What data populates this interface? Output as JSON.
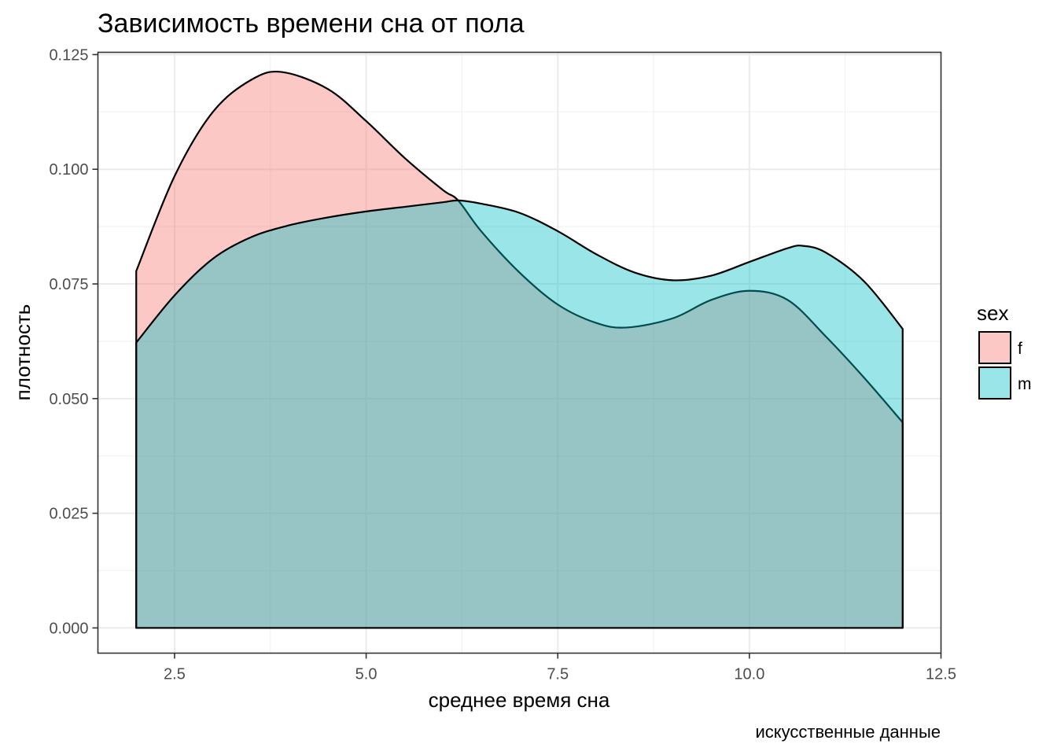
{
  "chart_data": {
    "type": "area",
    "title": "Зависимость времени сна от пола",
    "xlabel": "среднее время сна",
    "ylabel": "плотность",
    "caption": "искусственные данные",
    "xlim": [
      1.5,
      12.5
    ],
    "ylim": [
      -0.0055,
      0.1255
    ],
    "x_ticks": [
      2.5,
      5.0,
      7.5,
      10.0,
      12.5
    ],
    "x_tick_labels": [
      "2.5",
      "5.0",
      "7.5",
      "10.0",
      "12.5"
    ],
    "y_ticks": [
      0.0,
      0.025,
      0.05,
      0.075,
      0.1,
      0.125
    ],
    "y_tick_labels": [
      "0.000",
      "0.025",
      "0.050",
      "0.075",
      "0.100",
      "0.125"
    ],
    "grid": true,
    "legend": {
      "title": "sex",
      "placement": "right"
    },
    "series": [
      {
        "name": "f",
        "fill": "#F8766D",
        "x": [
          2.0,
          2.5,
          3.0,
          3.5,
          3.9,
          4.5,
          5.0,
          5.5,
          6.0,
          6.2,
          6.5,
          7.0,
          7.5,
          8.0,
          8.4,
          9.0,
          9.5,
          10.0,
          10.5,
          11.0,
          11.5,
          12.0
        ],
        "y": [
          0.0778,
          0.0985,
          0.1125,
          0.1195,
          0.1212,
          0.1175,
          0.1105,
          0.1025,
          0.0955,
          0.0932,
          0.0865,
          0.0775,
          0.0705,
          0.0665,
          0.0655,
          0.0675,
          0.0715,
          0.0735,
          0.0715,
          0.0635,
          0.0545,
          0.0448
        ]
      },
      {
        "name": "m",
        "fill": "#00BFC4",
        "x": [
          2.0,
          2.5,
          3.0,
          3.5,
          4.0,
          4.5,
          5.0,
          5.5,
          6.0,
          6.2,
          6.5,
          7.0,
          7.5,
          8.0,
          8.5,
          9.0,
          9.5,
          10.0,
          10.5,
          10.7,
          11.0,
          11.5,
          12.0
        ],
        "y": [
          0.0622,
          0.0725,
          0.0805,
          0.0852,
          0.0878,
          0.0895,
          0.0908,
          0.0918,
          0.0928,
          0.0932,
          0.0925,
          0.0905,
          0.0865,
          0.0815,
          0.0775,
          0.0758,
          0.0768,
          0.0798,
          0.0828,
          0.0833,
          0.0818,
          0.0755,
          0.0652
        ]
      }
    ]
  }
}
